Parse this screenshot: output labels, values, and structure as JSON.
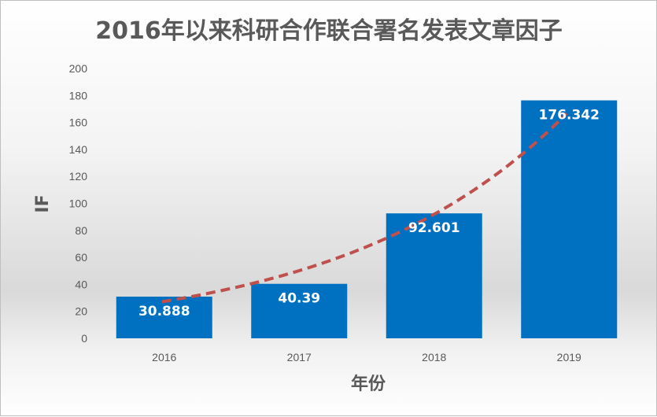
{
  "chart_data": {
    "type": "bar",
    "title": "2016年以来科研合作联合署名发表文章因子",
    "xlabel": "年份",
    "ylabel": "IF",
    "categories": [
      "2016",
      "2017",
      "2018",
      "2019"
    ],
    "values": [
      30.888,
      40.39,
      92.601,
      176.342
    ],
    "data_labels": [
      "30.888",
      "40.39",
      "92.601",
      "176.342"
    ],
    "ylim": [
      0,
      200
    ],
    "yticks": [
      0,
      20,
      40,
      60,
      80,
      100,
      120,
      140,
      160,
      180,
      200
    ],
    "grid": false,
    "legend": "none",
    "trendline": {
      "type": "exponential",
      "style": "dashed",
      "color": "#c0504d"
    },
    "colors": {
      "bar": "#0070c0"
    }
  }
}
